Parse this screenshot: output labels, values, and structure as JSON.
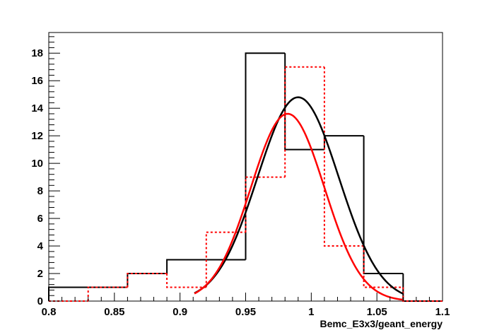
{
  "chart_data": {
    "type": "histogram",
    "xlabel": "Bemc_E3x3/geant_energy",
    "ylabel": "",
    "xlim": [
      0.8,
      1.1
    ],
    "ylim": [
      0,
      19.5
    ],
    "x_ticks": [
      0.8,
      0.85,
      0.9,
      0.95,
      1,
      1.05,
      1.1
    ],
    "x_tick_labels": [
      "0.8",
      "0.85",
      "0.9",
      "0.95",
      "1",
      "1.05",
      "1.1"
    ],
    "y_ticks": [
      0,
      2,
      4,
      6,
      8,
      10,
      12,
      14,
      16,
      18
    ],
    "y_tick_labels": [
      "0",
      "2",
      "4",
      "6",
      "8",
      "10",
      "12",
      "14",
      "16",
      "18"
    ],
    "grid": false,
    "legend": "none",
    "series": [
      {
        "kind": "histogram",
        "color": "#000000",
        "line_style": "solid",
        "bin_edges": [
          0.8,
          0.83,
          0.86,
          0.89,
          0.92,
          0.95,
          0.98,
          1.01,
          1.04,
          1.07,
          1.1
        ],
        "counts": [
          1,
          1,
          2,
          3,
          3,
          18,
          11,
          12,
          2,
          0
        ]
      },
      {
        "kind": "histogram",
        "color": "#ff0000",
        "line_style": "dotted",
        "bin_edges": [
          0.8,
          0.83,
          0.86,
          0.89,
          0.92,
          0.95,
          0.98,
          1.01,
          1.04,
          1.07,
          1.1
        ],
        "counts": [
          0,
          1,
          2,
          1,
          5,
          9,
          17,
          4,
          1,
          0
        ]
      },
      {
        "kind": "gaussian_fit",
        "color": "#000000",
        "line_style": "solid",
        "amplitude": 14.8,
        "mean": 0.99,
        "sigma": 0.031,
        "x_range": [
          0.911,
          1.07
        ]
      },
      {
        "kind": "gaussian_fit",
        "color": "#ff0000",
        "line_style": "solid",
        "amplitude": 13.6,
        "mean": 0.982,
        "sigma": 0.028,
        "x_range": [
          0.911,
          1.07
        ]
      }
    ]
  }
}
